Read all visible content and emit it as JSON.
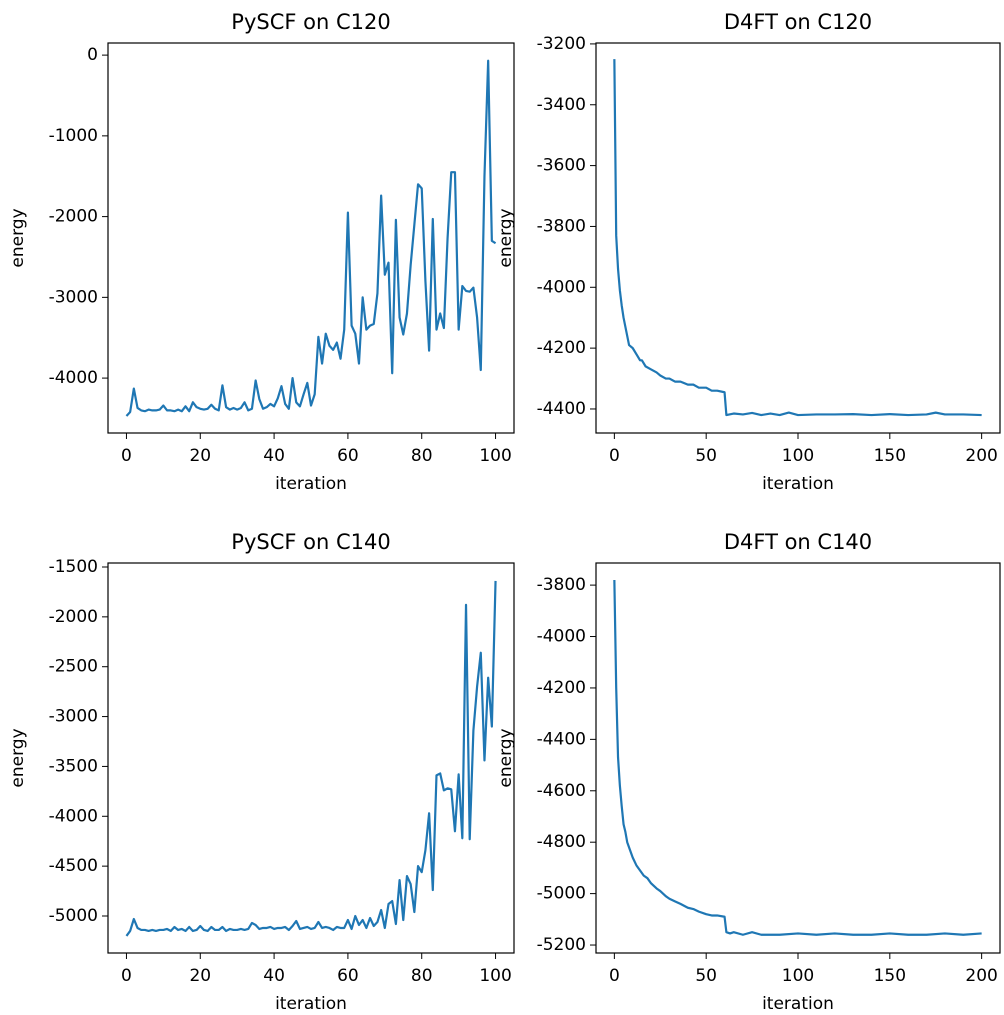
{
  "chart_data": [
    {
      "type": "line",
      "title": "PySCF on C120",
      "x_label": "iteration",
      "y_label": "energy",
      "color": "#1f77b4",
      "x": [
        0,
        1,
        2,
        3,
        4,
        5,
        6,
        7,
        8,
        9,
        10,
        11,
        12,
        13,
        14,
        15,
        16,
        17,
        18,
        19,
        20,
        21,
        22,
        23,
        24,
        25,
        26,
        27,
        28,
        29,
        30,
        31,
        32,
        33,
        34,
        35,
        36,
        37,
        38,
        39,
        40,
        41,
        42,
        43,
        44,
        45,
        46,
        47,
        48,
        49,
        50,
        51,
        52,
        53,
        54,
        55,
        56,
        57,
        58,
        59,
        60,
        61,
        62,
        63,
        64,
        65,
        66,
        67,
        68,
        69,
        70,
        71,
        72,
        73,
        74,
        75,
        76,
        77,
        78,
        79,
        80,
        81,
        82,
        83,
        84,
        85,
        86,
        87,
        88,
        89,
        90,
        91,
        92,
        93,
        94,
        95,
        96,
        97,
        98,
        99,
        100
      ],
      "values": [
        -4470,
        -4420,
        -4130,
        -4370,
        -4400,
        -4410,
        -4390,
        -4400,
        -4400,
        -4390,
        -4340,
        -4400,
        -4400,
        -4410,
        -4390,
        -4410,
        -4350,
        -4410,
        -4300,
        -4360,
        -4380,
        -4390,
        -4380,
        -4330,
        -4380,
        -4400,
        -4090,
        -4360,
        -4390,
        -4370,
        -4390,
        -4370,
        -4300,
        -4400,
        -4380,
        -4030,
        -4260,
        -4380,
        -4360,
        -4320,
        -4350,
        -4250,
        -4100,
        -4320,
        -4380,
        -4000,
        -4300,
        -4350,
        -4200,
        -4060,
        -4340,
        -4200,
        -3490,
        -3820,
        -3450,
        -3600,
        -3650,
        -3560,
        -3760,
        -3400,
        -1950,
        -3350,
        -3450,
        -3820,
        -3000,
        -3400,
        -3350,
        -3330,
        -2950,
        -1740,
        -2720,
        -2570,
        -3940,
        -2040,
        -3250,
        -3460,
        -3200,
        -2600,
        -2100,
        -1600,
        -1650,
        -2800,
        -3660,
        -2030,
        -3400,
        -3200,
        -3380,
        -2270,
        -1450,
        -1450,
        -3400,
        -2860,
        -2920,
        -2930,
        -2880,
        -3250,
        -3900,
        -1500,
        -70,
        -2300,
        -2330
      ],
      "xlim": [
        -5,
        105
      ],
      "ylim": [
        -4680,
        150
      ],
      "xticks": [
        0,
        20,
        40,
        60,
        80,
        100
      ],
      "yticks": [
        -4000,
        -3000,
        -2000,
        -1000,
        0
      ]
    },
    {
      "type": "line",
      "title": "D4FT on C120",
      "x_label": "iteration",
      "y_label": "energy",
      "color": "#1f77b4",
      "x": [
        0,
        1,
        2,
        3,
        4,
        5,
        6,
        7,
        8,
        10,
        12,
        14,
        15,
        17,
        20,
        23,
        25,
        28,
        30,
        33,
        36,
        40,
        43,
        46,
        50,
        53,
        56,
        60,
        61,
        65,
        70,
        75,
        80,
        85,
        90,
        95,
        100,
        110,
        120,
        130,
        140,
        150,
        160,
        170,
        175,
        180,
        190,
        200
      ],
      "values": [
        -3250,
        -3830,
        -3940,
        -4010,
        -4060,
        -4100,
        -4130,
        -4160,
        -4190,
        -4200,
        -4220,
        -4240,
        -4240,
        -4260,
        -4270,
        -4280,
        -4290,
        -4300,
        -4300,
        -4310,
        -4310,
        -4320,
        -4320,
        -4330,
        -4330,
        -4340,
        -4340,
        -4345,
        -4420,
        -4415,
        -4418,
        -4413,
        -4420,
        -4415,
        -4420,
        -4412,
        -4420,
        -4418,
        -4418,
        -4417,
        -4420,
        -4417,
        -4420,
        -4418,
        -4412,
        -4418,
        -4418,
        -4420
      ],
      "xlim": [
        -10,
        210
      ],
      "ylim": [
        -4479,
        -3197
      ],
      "xticks": [
        0,
        50,
        100,
        150,
        200
      ],
      "yticks": [
        -4400,
        -4200,
        -4000,
        -3800,
        -3600,
        -3400,
        -3200
      ]
    },
    {
      "type": "line",
      "title": "PySCF on C140",
      "x_label": "iteration",
      "y_label": "energy",
      "color": "#1f77b4",
      "x": [
        0,
        1,
        2,
        3,
        4,
        5,
        6,
        7,
        8,
        9,
        10,
        11,
        12,
        13,
        14,
        15,
        16,
        17,
        18,
        19,
        20,
        21,
        22,
        23,
        24,
        25,
        26,
        27,
        28,
        29,
        30,
        31,
        32,
        33,
        34,
        35,
        36,
        37,
        38,
        39,
        40,
        41,
        42,
        43,
        44,
        45,
        46,
        47,
        48,
        49,
        50,
        51,
        52,
        53,
        54,
        55,
        56,
        57,
        58,
        59,
        60,
        61,
        62,
        63,
        64,
        65,
        66,
        67,
        68,
        69,
        70,
        71,
        72,
        73,
        74,
        75,
        76,
        77,
        78,
        79,
        80,
        81,
        82,
        83,
        84,
        85,
        86,
        87,
        88,
        89,
        90,
        91,
        92,
        93,
        94,
        95,
        96,
        97,
        98,
        99,
        100
      ],
      "values": [
        -5200,
        -5150,
        -5030,
        -5120,
        -5140,
        -5140,
        -5150,
        -5140,
        -5150,
        -5140,
        -5140,
        -5130,
        -5150,
        -5110,
        -5140,
        -5130,
        -5150,
        -5110,
        -5150,
        -5140,
        -5100,
        -5140,
        -5150,
        -5110,
        -5140,
        -5140,
        -5110,
        -5150,
        -5130,
        -5140,
        -5140,
        -5130,
        -5140,
        -5130,
        -5070,
        -5090,
        -5130,
        -5120,
        -5120,
        -5110,
        -5130,
        -5120,
        -5120,
        -5110,
        -5140,
        -5100,
        -5050,
        -5130,
        -5120,
        -5110,
        -5130,
        -5120,
        -5060,
        -5120,
        -5110,
        -5120,
        -5140,
        -5110,
        -5120,
        -5120,
        -5040,
        -5130,
        -5000,
        -5090,
        -5040,
        -5120,
        -5020,
        -5100,
        -5060,
        -4940,
        -5120,
        -4880,
        -4850,
        -5080,
        -4640,
        -5040,
        -4600,
        -4680,
        -4960,
        -4500,
        -4560,
        -4340,
        -3970,
        -4740,
        -3590,
        -3570,
        -3740,
        -3720,
        -3730,
        -4150,
        -3580,
        -4220,
        -1880,
        -4230,
        -3140,
        -2700,
        -2360,
        -3440,
        -2610,
        -3100,
        -1640
      ],
      "xlim": [
        -5,
        105
      ],
      "ylim": [
        -5371,
        -1460
      ],
      "xticks": [
        0,
        20,
        40,
        60,
        80,
        100
      ],
      "yticks": [
        -5000,
        -4500,
        -4000,
        -3500,
        -3000,
        -2500,
        -2000,
        -1500
      ]
    },
    {
      "type": "line",
      "title": "D4FT on C140",
      "x_label": "iteration",
      "y_label": "energy",
      "color": "#1f77b4",
      "x": [
        0,
        1,
        2,
        3,
        4,
        5,
        6,
        7,
        8,
        10,
        12,
        14,
        16,
        18,
        20,
        23,
        25,
        28,
        30,
        33,
        36,
        40,
        43,
        46,
        50,
        53,
        56,
        60,
        61,
        63,
        65,
        70,
        75,
        80,
        90,
        100,
        110,
        120,
        130,
        140,
        150,
        160,
        170,
        180,
        190,
        200
      ],
      "values": [
        -3780,
        -4200,
        -4470,
        -4580,
        -4660,
        -4730,
        -4760,
        -4800,
        -4820,
        -4860,
        -4890,
        -4910,
        -4930,
        -4940,
        -4960,
        -4980,
        -4990,
        -5010,
        -5020,
        -5030,
        -5040,
        -5055,
        -5060,
        -5070,
        -5080,
        -5085,
        -5085,
        -5090,
        -5150,
        -5155,
        -5150,
        -5160,
        -5150,
        -5160,
        -5160,
        -5155,
        -5160,
        -5155,
        -5160,
        -5160,
        -5155,
        -5160,
        -5160,
        -5155,
        -5160,
        -5155
      ],
      "xlim": [
        -10,
        210
      ],
      "ylim": [
        -5231,
        -3714
      ],
      "xticks": [
        0,
        50,
        100,
        150,
        200
      ],
      "yticks": [
        -5200,
        -5000,
        -4800,
        -4600,
        -4400,
        -4200,
        -4000,
        -3800
      ]
    }
  ]
}
